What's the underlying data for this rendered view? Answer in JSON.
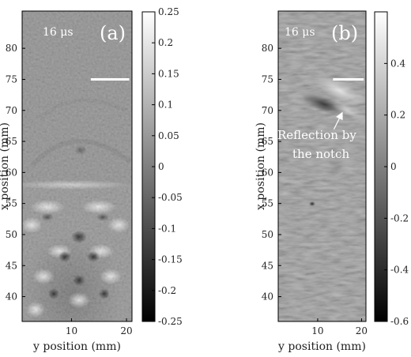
{
  "chart_data": [
    {
      "type": "heatmap",
      "panel_label": "(a)",
      "time_label": "16 μs",
      "xlabel": "y position (mm)",
      "ylabel": "x position (mm)",
      "xlim": [
        1,
        21
      ],
      "ylim": [
        36,
        86
      ],
      "xticks": [
        "10",
        "20"
      ],
      "yticks": [
        "40",
        "45",
        "50",
        "55",
        "60",
        "65",
        "70",
        "75",
        "80"
      ],
      "colorbar": {
        "range": [
          -0.25,
          0.25
        ],
        "ticks": [
          "0.25",
          "0.2",
          "0.15",
          "0.1",
          "0.05",
          "0",
          "-0.05",
          "-0.1",
          "-0.15",
          "-0.2",
          "-0.25"
        ],
        "colormap": "gray"
      },
      "scale_bar": {
        "y_from": 13.5,
        "y_to": 20.5,
        "x": 75
      },
      "features": {
        "interference_pattern_center": [
          8.5,
          48.5
        ],
        "bright_fringe_rows": [
          57,
          53,
          48,
          44
        ],
        "dark_spot_rows": [
          49.5,
          47.5,
          45
        ]
      }
    },
    {
      "type": "heatmap",
      "panel_label": "(b)",
      "time_label": "16 μs",
      "xlabel": "y position (mm)",
      "ylabel": "x position (mm)",
      "xlim": [
        1,
        21
      ],
      "ylim": [
        36,
        86
      ],
      "xticks": [
        "10",
        "20"
      ],
      "yticks": [
        "40",
        "45",
        "50",
        "55",
        "60",
        "65",
        "70",
        "75",
        "80"
      ],
      "colorbar": {
        "range": [
          -0.6,
          0.6
        ],
        "ticks": [
          "0.4",
          "0.2",
          "0",
          "-0.2",
          "-0.4",
          "-0.6"
        ],
        "colormap": "gray"
      },
      "scale_bar": {
        "y_from": 13.5,
        "y_to": 20.5,
        "x": 75
      },
      "annotation": {
        "text_lines": [
          "Reflection by",
          "the notch"
        ],
        "arrow_to": [
          15.5,
          69.5
        ]
      },
      "features": {
        "reflection_center": [
          16,
          71
        ]
      }
    }
  ]
}
